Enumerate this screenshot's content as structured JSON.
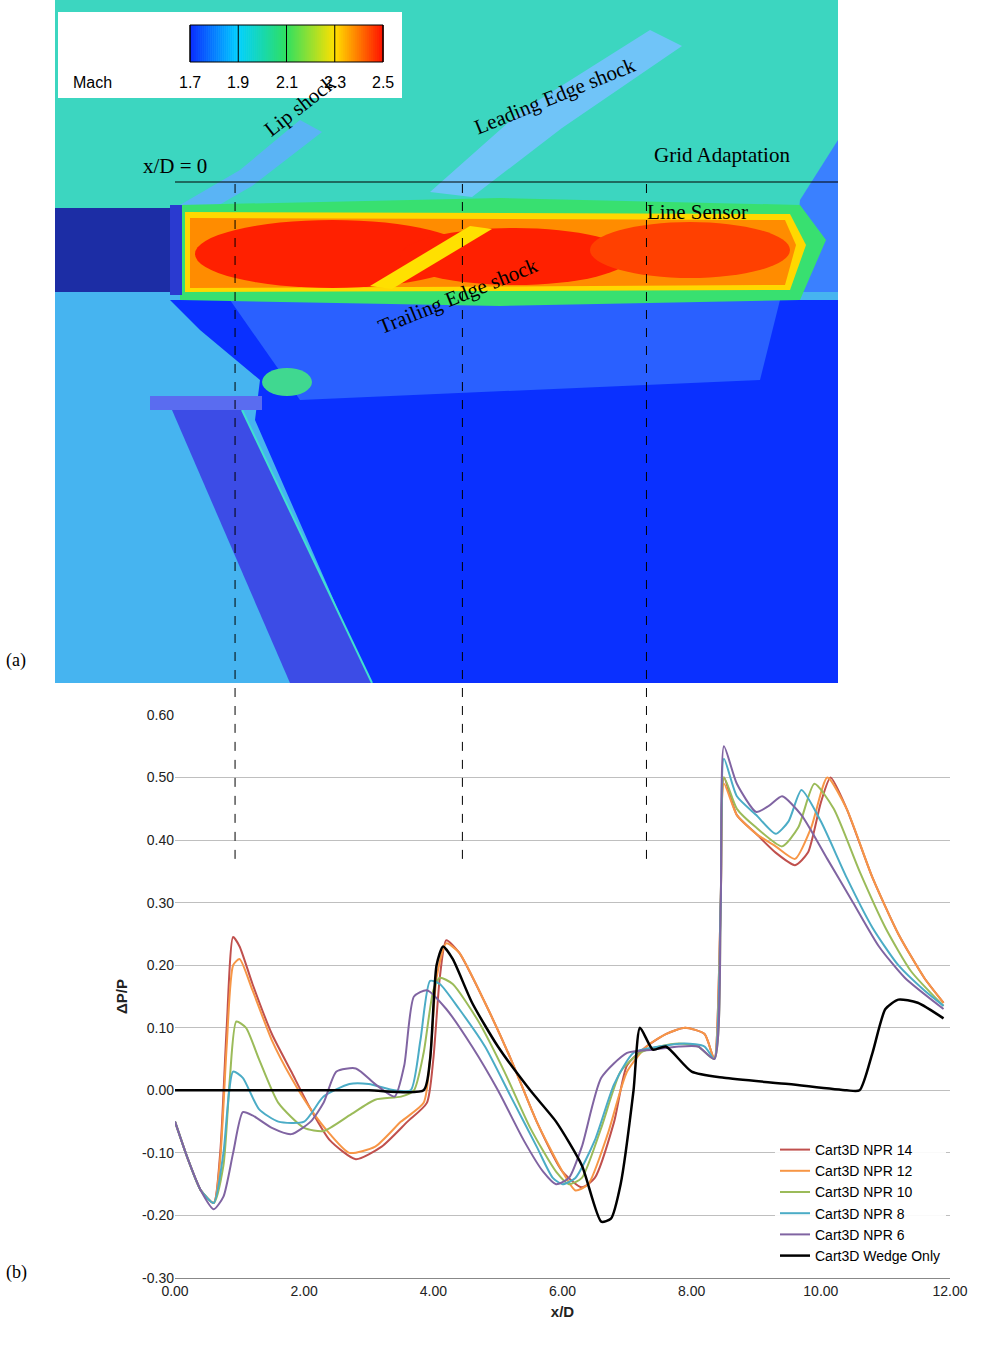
{
  "figure_a": {
    "panel": "(a)",
    "colorbar": {
      "label": "Mach",
      "range": [
        1.7,
        2.5
      ],
      "ticks": [
        1.7,
        1.9,
        2.1,
        2.3,
        2.5
      ]
    },
    "annotations": [
      "x/D = 0",
      "Lip shock",
      "Leading Edge shock",
      "Trailing Edge shock",
      "Grid Adaptation",
      "Line Sensor"
    ]
  },
  "chart_data": {
    "type": "line",
    "panel": "(b)",
    "xlabel": "x/D",
    "ylabel": "ΔP/P",
    "xlim": [
      0,
      12
    ],
    "ylim": [
      -0.3,
      0.6
    ],
    "xticks": [
      {
        "value": 0,
        "label": "0.00"
      },
      {
        "value": 2,
        "label": "2.00"
      },
      {
        "value": 4,
        "label": "4.00"
      },
      {
        "value": 6,
        "label": "6.00"
      },
      {
        "value": 8,
        "label": "8.00"
      },
      {
        "value": 10,
        "label": "10.00"
      },
      {
        "value": 12,
        "label": "12.00"
      }
    ],
    "yticks": [
      {
        "value": -0.3,
        "label": "-0.30"
      },
      {
        "value": -0.2,
        "label": "-0.20"
      },
      {
        "value": -0.1,
        "label": "-0.10"
      },
      {
        "value": 0,
        "label": "0.00"
      },
      {
        "value": 0.1,
        "label": "0.10"
      },
      {
        "value": 0.2,
        "label": "0.20"
      },
      {
        "value": 0.3,
        "label": "0.30"
      },
      {
        "value": 0.4,
        "label": "0.40"
      },
      {
        "value": 0.5,
        "label": "0.50"
      },
      {
        "value": 0.6,
        "label": "0.60"
      }
    ],
    "grid": true,
    "legend": "lower right",
    "reference_lines": {
      "x": [
        0.93,
        4.45,
        7.3
      ],
      "from_y": 0.37
    },
    "series": [
      {
        "name": "Cart3D NPR 14",
        "color": "#c0504d",
        "x": [
          0,
          0.2,
          0.4,
          0.6,
          0.7,
          0.8,
          0.9,
          1.0,
          1.2,
          1.5,
          1.8,
          2.1,
          2.4,
          2.8,
          3.2,
          3.6,
          3.9,
          4.0,
          4.1,
          4.2,
          4.4,
          4.8,
          5.2,
          5.6,
          6.0,
          6.3,
          6.5,
          6.8,
          7.0,
          7.3,
          7.6,
          7.9,
          8.2,
          8.35,
          8.45,
          8.5,
          8.7,
          9.0,
          9.3,
          9.6,
          9.8,
          10.0,
          10.15,
          10.4,
          10.8,
          11.2,
          11.6,
          11.9
        ],
        "values": [
          -0.05,
          -0.11,
          -0.16,
          -0.18,
          -0.1,
          0.1,
          0.245,
          0.23,
          0.17,
          0.09,
          0.03,
          -0.03,
          -0.08,
          -0.11,
          -0.09,
          -0.05,
          -0.02,
          0.05,
          0.18,
          0.24,
          0.22,
          0.14,
          0.05,
          -0.05,
          -0.13,
          -0.155,
          -0.14,
          -0.05,
          0.04,
          0.07,
          0.09,
          0.1,
          0.09,
          0.05,
          0.3,
          0.5,
          0.44,
          0.41,
          0.38,
          0.36,
          0.38,
          0.46,
          0.5,
          0.45,
          0.34,
          0.25,
          0.18,
          0.14
        ]
      },
      {
        "name": "Cart3D NPR 12",
        "color": "#f79646",
        "x": [
          0,
          0.2,
          0.4,
          0.6,
          0.7,
          0.8,
          0.9,
          1.0,
          1.2,
          1.5,
          1.8,
          2.1,
          2.4,
          2.7,
          3.1,
          3.5,
          3.85,
          3.95,
          4.05,
          4.2,
          4.4,
          4.8,
          5.2,
          5.6,
          6.0,
          6.2,
          6.4,
          6.7,
          7.0,
          7.3,
          7.6,
          7.9,
          8.2,
          8.35,
          8.45,
          8.5,
          8.7,
          9.0,
          9.3,
          9.6,
          9.85,
          10.1,
          10.4,
          10.8,
          11.2,
          11.6,
          11.9
        ],
        "values": [
          -0.05,
          -0.11,
          -0.16,
          -0.18,
          -0.11,
          0.07,
          0.2,
          0.21,
          0.16,
          0.08,
          0.02,
          -0.03,
          -0.07,
          -0.1,
          -0.09,
          -0.05,
          -0.02,
          0.05,
          0.18,
          0.235,
          0.22,
          0.14,
          0.05,
          -0.05,
          -0.13,
          -0.16,
          -0.15,
          -0.07,
          0.03,
          0.07,
          0.09,
          0.1,
          0.09,
          0.05,
          0.3,
          0.49,
          0.44,
          0.41,
          0.39,
          0.37,
          0.42,
          0.5,
          0.45,
          0.34,
          0.25,
          0.18,
          0.14
        ]
      },
      {
        "name": "Cart3D NPR 10",
        "color": "#9bbb59",
        "x": [
          0,
          0.2,
          0.4,
          0.6,
          0.75,
          0.85,
          0.95,
          1.1,
          1.3,
          1.6,
          2.0,
          2.3,
          2.7,
          3.1,
          3.5,
          3.7,
          3.85,
          4.0,
          4.1,
          4.3,
          4.7,
          5.1,
          5.5,
          5.9,
          6.1,
          6.3,
          6.6,
          6.9,
          7.2,
          7.5,
          7.8,
          8.1,
          8.35,
          8.45,
          8.5,
          8.7,
          9.0,
          9.4,
          9.65,
          9.9,
          10.2,
          10.6,
          11.0,
          11.4,
          11.9
        ],
        "values": [
          -0.05,
          -0.11,
          -0.16,
          -0.18,
          -0.12,
          0.02,
          0.11,
          0.1,
          0.05,
          -0.02,
          -0.06,
          -0.065,
          -0.04,
          -0.015,
          -0.01,
          0.0,
          0.06,
          0.16,
          0.18,
          0.17,
          0.11,
          0.03,
          -0.06,
          -0.13,
          -0.15,
          -0.14,
          -0.06,
          0.03,
          0.06,
          0.07,
          0.075,
          0.07,
          0.05,
          0.3,
          0.5,
          0.45,
          0.42,
          0.39,
          0.42,
          0.49,
          0.45,
          0.35,
          0.26,
          0.19,
          0.135
        ]
      },
      {
        "name": "Cart3D NPR 8",
        "color": "#4bacc6",
        "x": [
          0,
          0.2,
          0.4,
          0.6,
          0.75,
          0.9,
          1.05,
          1.3,
          1.6,
          2.0,
          2.3,
          2.7,
          3.0,
          3.4,
          3.65,
          3.8,
          3.95,
          4.1,
          4.4,
          4.8,
          5.2,
          5.6,
          5.85,
          6.0,
          6.2,
          6.5,
          6.8,
          7.1,
          7.5,
          7.9,
          8.2,
          8.35,
          8.45,
          8.5,
          8.7,
          9.0,
          9.3,
          9.5,
          9.7,
          10.0,
          10.4,
          10.8,
          11.2,
          11.6,
          11.9
        ],
        "values": [
          -0.05,
          -0.11,
          -0.16,
          -0.18,
          -0.1,
          0.03,
          0.02,
          -0.03,
          -0.05,
          -0.05,
          -0.01,
          0.01,
          0.01,
          0.0,
          0.0,
          0.08,
          0.175,
          0.17,
          0.13,
          0.07,
          -0.01,
          -0.09,
          -0.14,
          -0.15,
          -0.14,
          -0.08,
          0.01,
          0.06,
          0.07,
          0.075,
          0.07,
          0.05,
          0.3,
          0.53,
          0.47,
          0.44,
          0.41,
          0.43,
          0.48,
          0.43,
          0.34,
          0.26,
          0.2,
          0.16,
          0.135
        ]
      },
      {
        "name": "Cart3D NPR 6",
        "color": "#8064a2",
        "x": [
          0,
          0.2,
          0.4,
          0.6,
          0.75,
          0.9,
          1.05,
          1.2,
          1.5,
          1.8,
          2.1,
          2.3,
          2.5,
          2.8,
          3.1,
          3.4,
          3.55,
          3.7,
          3.9,
          4.2,
          4.6,
          5.0,
          5.4,
          5.7,
          5.9,
          6.1,
          6.3,
          6.6,
          7.0,
          7.4,
          7.8,
          8.1,
          8.35,
          8.45,
          8.5,
          8.7,
          9.0,
          9.2,
          9.4,
          9.7,
          10.1,
          10.5,
          10.9,
          11.3,
          11.9
        ],
        "values": [
          -0.05,
          -0.11,
          -0.16,
          -0.19,
          -0.17,
          -0.1,
          -0.035,
          -0.04,
          -0.06,
          -0.07,
          -0.05,
          -0.02,
          0.03,
          0.035,
          0.01,
          -0.01,
          0.04,
          0.15,
          0.16,
          0.13,
          0.07,
          0.0,
          -0.08,
          -0.13,
          -0.15,
          -0.14,
          -0.09,
          0.02,
          0.06,
          0.065,
          0.07,
          0.07,
          0.05,
          0.3,
          0.55,
          0.49,
          0.445,
          0.455,
          0.47,
          0.44,
          0.37,
          0.3,
          0.23,
          0.18,
          0.13
        ]
      },
      {
        "name": "Cart3D Wedge Only",
        "color": "#000000",
        "x": [
          0,
          1,
          2,
          3,
          3.85,
          3.95,
          4.05,
          4.15,
          4.3,
          4.6,
          5.0,
          5.5,
          5.9,
          6.3,
          6.6,
          6.75,
          6.9,
          7.1,
          7.2,
          7.4,
          7.6,
          8.0,
          8.5,
          9.5,
          10.4,
          10.6,
          10.8,
          11.0,
          11.2,
          11.5,
          11.9
        ],
        "values": [
          0,
          0,
          0,
          0,
          0,
          0.05,
          0.2,
          0.23,
          0.21,
          0.14,
          0.07,
          0.0,
          -0.05,
          -0.12,
          -0.21,
          -0.205,
          -0.15,
          0.0,
          0.1,
          0.065,
          0.07,
          0.03,
          0.02,
          0.01,
          0.0,
          0.0,
          0.06,
          0.13,
          0.145,
          0.14,
          0.115
        ]
      }
    ]
  }
}
